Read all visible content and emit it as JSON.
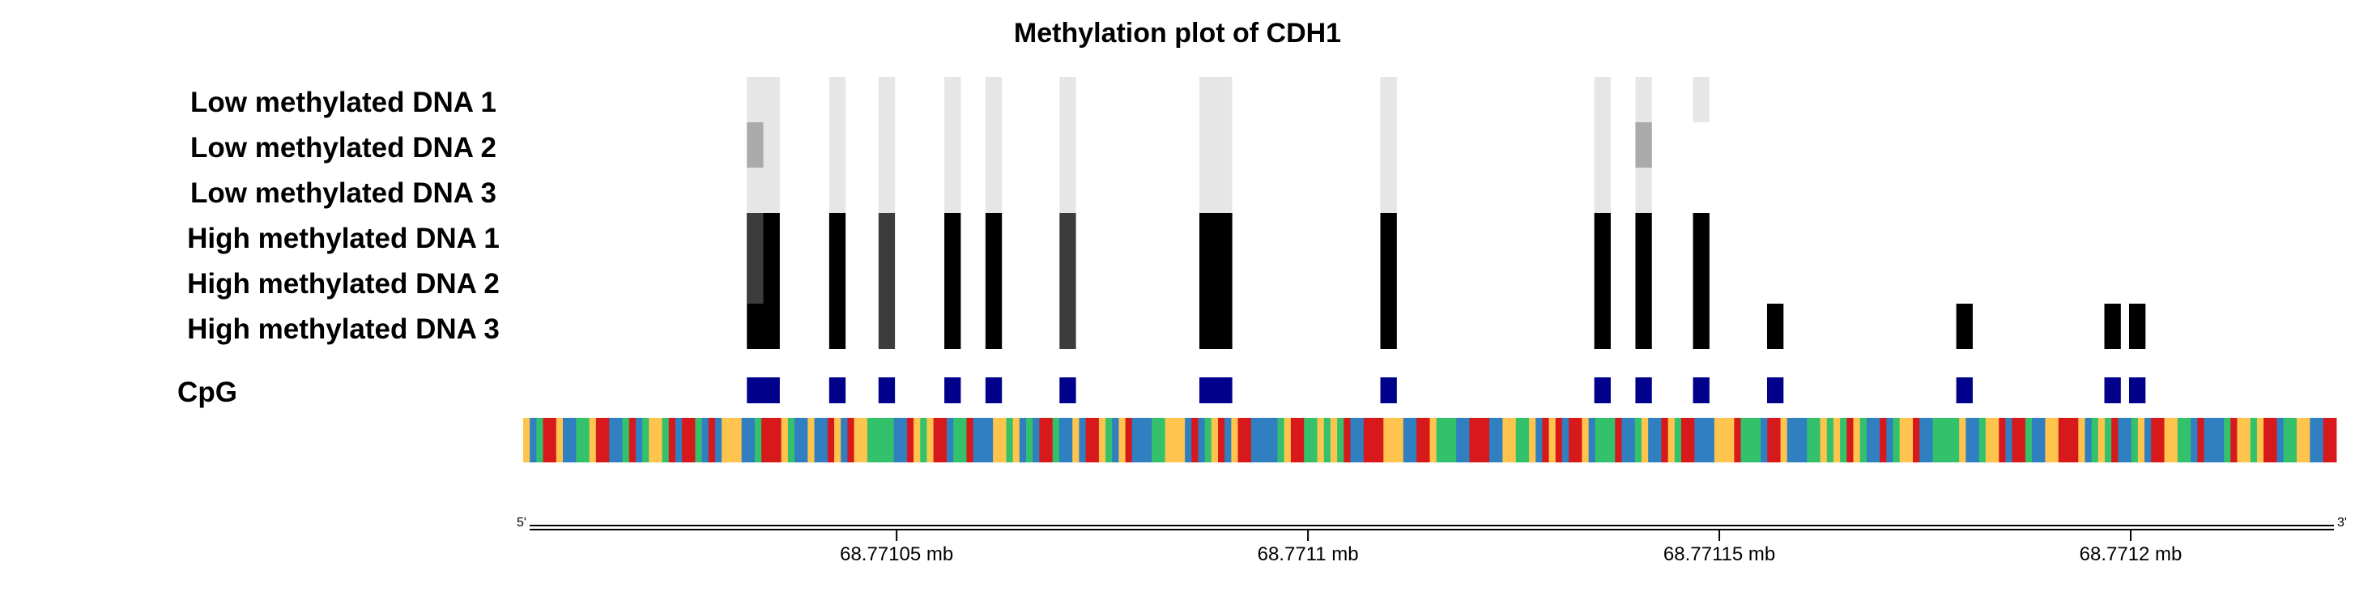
{
  "chart_data": {
    "type": "heatmap",
    "title": "Methylation plot of CDH1",
    "xlabel": "",
    "ylabel": "",
    "x_unit": "mb",
    "xlim": [
      68.771005,
      68.771225
    ],
    "samples": [
      "Low methylated DNA 1",
      "Low methylated DNA 2",
      "Low methylated DNA 3",
      "High methylated DNA 1",
      "High methylated DNA 2",
      "High methylated DNA 3"
    ],
    "cpg_label": "CpG",
    "cpg_sites": [
      {
        "start": 68.7710318,
        "end": 68.7710358
      },
      {
        "start": 68.7710418,
        "end": 68.7710438
      },
      {
        "start": 68.7710478,
        "end": 68.7710498
      },
      {
        "start": 68.7710558,
        "end": 68.7710578
      },
      {
        "start": 68.7710608,
        "end": 68.7710628
      },
      {
        "start": 68.7710698,
        "end": 68.7710718
      },
      {
        "start": 68.7710868,
        "end": 68.7710908
      },
      {
        "start": 68.7711088,
        "end": 68.7711108
      },
      {
        "start": 68.7711348,
        "end": 68.7711368
      },
      {
        "start": 68.7711398,
        "end": 68.7711418
      },
      {
        "start": 68.7711468,
        "end": 68.7711488
      },
      {
        "start": 68.7711558,
        "end": 68.7711578
      },
      {
        "start": 68.7711788,
        "end": 68.7711808
      },
      {
        "start": 68.7711968,
        "end": 68.7711988
      },
      {
        "start": 68.7711998,
        "end": 68.7712018
      }
    ],
    "methylation": [
      [
        0.1,
        0.1,
        0.1,
        0.1,
        0.1,
        0.1,
        0.1,
        0.1,
        0.1,
        0.1,
        0.1,
        null,
        null,
        null,
        null
      ],
      [
        0.1,
        0.1,
        0.1,
        0.1,
        0.1,
        0.1,
        0.1,
        0.1,
        0.1,
        0.1,
        null,
        null,
        null,
        null,
        null
      ],
      [
        0.1,
        0.1,
        0.1,
        0.1,
        0.1,
        0.1,
        0.1,
        0.1,
        0.1,
        0.1,
        null,
        null,
        null,
        null,
        null
      ],
      [
        1.0,
        1.0,
        0.8,
        1.0,
        1.0,
        0.8,
        1.0,
        1.0,
        1.0,
        1.0,
        1.0,
        null,
        null,
        null,
        null
      ],
      [
        1.0,
        1.0,
        0.8,
        1.0,
        1.0,
        0.8,
        1.0,
        1.0,
        1.0,
        1.0,
        1.0,
        null,
        null,
        null,
        null
      ],
      [
        1.0,
        1.0,
        0.8,
        1.0,
        1.0,
        0.8,
        1.0,
        1.0,
        1.0,
        1.0,
        1.0,
        1.0,
        1.0,
        1.0,
        1.0
      ]
    ],
    "partial_cells": [
      {
        "sample": 1,
        "site": 0,
        "value": 0.35,
        "sub": "left"
      },
      {
        "sample": 1,
        "site": 9,
        "value": 0.35,
        "sub": "full"
      },
      {
        "sample": 3,
        "site": 0,
        "value": 0.75,
        "sub": "left"
      },
      {
        "sample": 4,
        "site": 0,
        "value": 0.75,
        "sub": "left"
      }
    ],
    "x_ticks": [
      {
        "value": 68.77105,
        "label": "68.77105 mb"
      },
      {
        "value": 68.7711,
        "label": "68.7711 mb"
      },
      {
        "value": 68.77115,
        "label": "68.77115 mb"
      },
      {
        "value": 68.7712,
        "label": "68.7712 mb"
      }
    ],
    "axis_end_labels": {
      "left": "5'",
      "right": "3'"
    },
    "sequence_track": "GCATTGCCAAGTTCCATCAGGATCTTACTCGGGCCATTTGACCGCCTGCTGGAAAACCTGAGTTCAATCCCGGAGCACTTACCGCTTGACGTCCCAAGGGCTCAGTCGTTCCCCAGTTAAGAGATCCTTTGGGCCTTGAAACCTTTCCGGAAGCTGTCTTGCAAATCCAGCCTGATTCCCGGGTAAACTTGCCCAAGAGATGACCTCAGGTCCAAAAGCCAGGTCTTACCGGTTTGCAGATCCAGCTTGGAACTCCCATGGAGTTCAAGGCCTT",
    "colors": {
      "low_methylation": "#e6e6e6",
      "mid_methylation": "#aaaaaa",
      "high_methylation": "#000000",
      "partial_high": "#3c3c3c",
      "cpg": "#00008b",
      "base_A": "#33c26b",
      "base_C": "#2f7fc1",
      "base_G": "#ffc44d",
      "base_T": "#d7191c"
    }
  }
}
